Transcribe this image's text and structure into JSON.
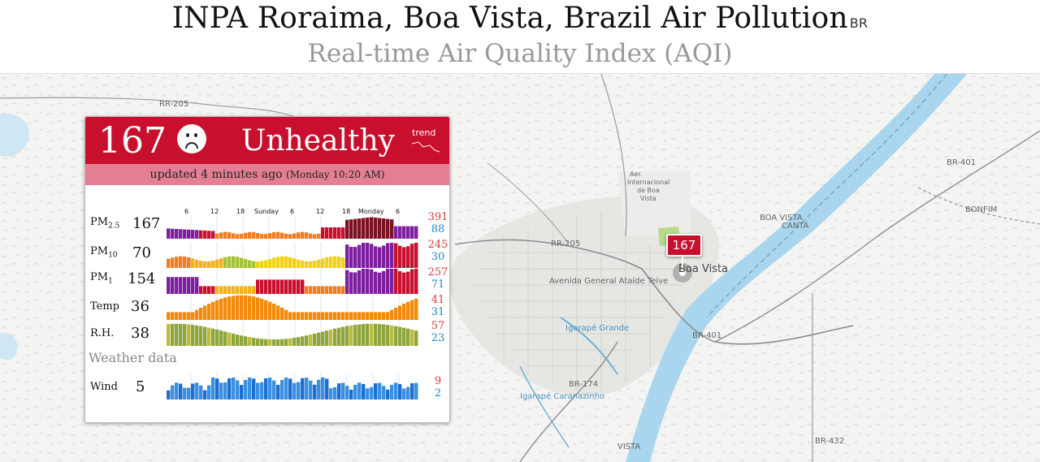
{
  "header": {
    "title": "INPA Roraima, Boa Vista, Brazil Air Pollution",
    "country_code": "BR",
    "subtitle": "Real-time Air Quality Index (AQI)"
  },
  "card": {
    "aqi_value": "167",
    "aqi_level": "Unhealthy",
    "trend_label": "trend",
    "updated_text": "updated 4 minutes ago",
    "updated_time": "(Monday 10:20 AM)",
    "time_ticks": [
      "6",
      "12",
      "18",
      "Sunday",
      "6",
      "12",
      "18",
      "Monday",
      "6"
    ],
    "weather_label": "Weather data",
    "rows": [
      {
        "label": "PM",
        "sub": "2.5",
        "value": "167",
        "max": "391",
        "min": "88"
      },
      {
        "label": "PM",
        "sub": "10",
        "value": "70",
        "max": "245",
        "min": "30"
      },
      {
        "label": "PM",
        "sub": "1",
        "value": "154",
        "max": "257",
        "min": "71"
      },
      {
        "label": "Temp",
        "sub": "",
        "value": "36",
        "max": "41",
        "min": "31"
      },
      {
        "label": "R.H.",
        "sub": "",
        "value": "38",
        "max": "57",
        "min": "23"
      }
    ],
    "wind": {
      "label": "Wind",
      "value": "5",
      "max": "9",
      "min": "2"
    }
  },
  "map": {
    "marker_value": "167",
    "labels": {
      "city": "Boa Vista",
      "airport": [
        "Aer.",
        "Internacional",
        "de Boa",
        "Vista"
      ],
      "rr205_a": "RR-205",
      "rr205_b": "RR-205",
      "br401_a": "BR-401",
      "br401_b": "BR-401",
      "br174": "BR-174",
      "br432": "BR-432",
      "avenue": "Avenida General Ataíde Teive",
      "igarape_grande": "Igarapé Grande",
      "igarape_caranazinho": "Igarapé Caranazinho",
      "boa_vista_canta": [
        "BOA VISTA",
        "CANTÁ"
      ],
      "bonfim": "BONFIM",
      "vista_south": "VISTA"
    }
  },
  "colors": {
    "unhealthy": "#c8102e",
    "unhealthy_light": "#e47f93",
    "max_color": "#d63b3b",
    "min_color": "#1e88c9",
    "river": "#a9d6ee"
  }
}
